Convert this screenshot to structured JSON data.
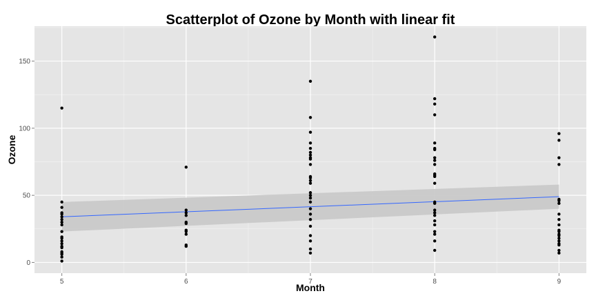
{
  "chart_data": {
    "type": "scatter",
    "title": "Scatterplot of Ozone by Month with linear fit",
    "xlabel": "Month",
    "ylabel": "Ozone",
    "xlim": [
      4.78,
      9.22
    ],
    "ylim": [
      -8,
      176
    ],
    "x_ticks": [
      5,
      6,
      7,
      8,
      9
    ],
    "y_ticks": [
      0,
      50,
      100,
      150
    ],
    "grid": true,
    "background_color": "#e5e5e5",
    "grid_color": "#ffffff",
    "point_color": "#000000",
    "fit_color": "#3366ff",
    "band_color": "#c8c8c8",
    "series": [
      {
        "x": 5,
        "values": [
          115,
          45,
          41,
          37,
          36,
          34,
          32,
          30,
          28,
          23,
          19,
          18,
          16,
          14,
          12,
          11,
          8,
          7,
          6,
          4,
          1
        ]
      },
      {
        "x": 6,
        "values": [
          71,
          39,
          37,
          35,
          30,
          29,
          24,
          23,
          21,
          13,
          12
        ]
      },
      {
        "x": 7,
        "values": [
          135,
          108,
          97,
          89,
          85,
          82,
          80,
          78,
          77,
          73,
          64,
          63,
          61,
          59,
          52,
          50,
          48,
          45,
          40,
          36,
          32,
          27,
          20,
          16,
          10,
          7
        ]
      },
      {
        "x": 8,
        "values": [
          168,
          122,
          118,
          110,
          89,
          85,
          84,
          78,
          76,
          73,
          66,
          65,
          64,
          59,
          45,
          44,
          39,
          37,
          35,
          31,
          28,
          23,
          21,
          16,
          9
        ]
      },
      {
        "x": 9,
        "values": [
          96,
          91,
          78,
          73,
          47,
          46,
          44,
          36,
          32,
          28,
          24,
          23,
          21,
          20,
          18,
          16,
          14,
          13,
          9,
          7
        ]
      }
    ],
    "fit": {
      "method": "linear",
      "x": [
        5,
        9
      ],
      "y": [
        34,
        49
      ],
      "ci_lower": [
        23,
        40
      ],
      "ci_upper": [
        45,
        58
      ]
    }
  }
}
